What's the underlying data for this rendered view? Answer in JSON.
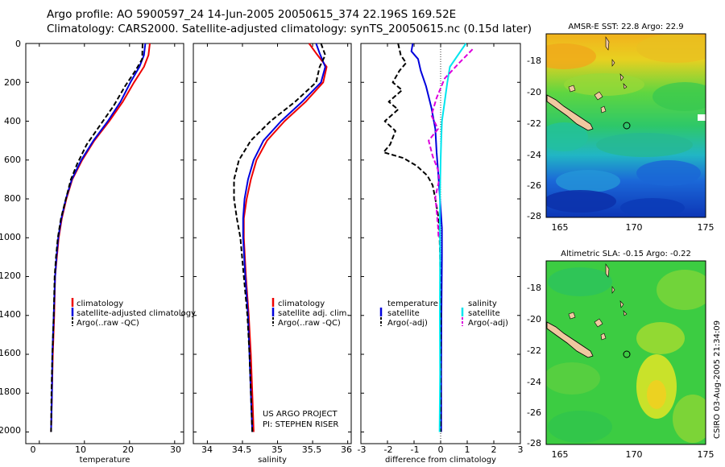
{
  "header": {
    "line1": "Argo profile: AO 5900597_24 14-Jun-2005 20050615_374 22.196S 169.52E",
    "line2": "Climatology: CARS2000. Satellite-adjusted climatology: synTS_20050615.nc (0.15d later)"
  },
  "colors": {
    "red": "#ee0000",
    "blue": "#0000dd",
    "black": "#000000",
    "cyan": "#00e5ee",
    "magenta": "#dd00dd"
  },
  "chart_data": [
    {
      "type": "line",
      "xlabel": "temperature",
      "x_ticks": [
        "0",
        "10",
        "20",
        "30"
      ],
      "xlim": [
        -3,
        32
      ],
      "y_ticks": [
        "0",
        "200",
        "400",
        "600",
        "800",
        "1000",
        "1200",
        "1400",
        "1600",
        "1800",
        "2000"
      ],
      "ylim": [
        0,
        2060
      ],
      "y_reversed": true,
      "legend": [
        "climatology",
        "satellite-adjusted climatology",
        "Argo(..raw -QC)"
      ],
      "series": [
        {
          "name": "climatology",
          "color": "red",
          "dash": false,
          "points": [
            [
              24.5,
              0
            ],
            [
              24.2,
              60
            ],
            [
              23.2,
              120
            ],
            [
              21.0,
              200
            ],
            [
              18.5,
              300
            ],
            [
              15.5,
              400
            ],
            [
              12.2,
              500
            ],
            [
              9.5,
              600
            ],
            [
              7.3,
              700
            ],
            [
              6.0,
              800
            ],
            [
              5.0,
              900
            ],
            [
              4.3,
              1000
            ],
            [
              3.9,
              1100
            ],
            [
              3.5,
              1200
            ],
            [
              3.3,
              1400
            ],
            [
              3.0,
              1600
            ],
            [
              2.8,
              1800
            ],
            [
              2.6,
              2000
            ]
          ]
        },
        {
          "name": "satellite-adjusted climatology",
          "color": "blue",
          "dash": false,
          "points": [
            [
              23.5,
              0
            ],
            [
              23.2,
              60
            ],
            [
              22.2,
              120
            ],
            [
              20.2,
              200
            ],
            [
              18.0,
              300
            ],
            [
              15.2,
              400
            ],
            [
              12.0,
              500
            ],
            [
              9.3,
              600
            ],
            [
              7.2,
              700
            ],
            [
              5.9,
              800
            ],
            [
              4.9,
              900
            ],
            [
              4.2,
              1000
            ],
            [
              3.8,
              1100
            ],
            [
              3.5,
              1200
            ],
            [
              3.2,
              1400
            ],
            [
              2.9,
              1600
            ],
            [
              2.8,
              1800
            ],
            [
              2.6,
              2000
            ]
          ]
        },
        {
          "name": "Argo(..raw -QC)",
          "color": "black",
          "dash": true,
          "points": [
            [
              22.9,
              0
            ],
            [
              22.8,
              80
            ],
            [
              21.3,
              140
            ],
            [
              19.0,
              220
            ],
            [
              16.5,
              320
            ],
            [
              13.5,
              420
            ],
            [
              10.5,
              520
            ],
            [
              8.4,
              620
            ],
            [
              7.0,
              700
            ],
            [
              5.9,
              800
            ],
            [
              4.8,
              900
            ],
            [
              4.1,
              1000
            ],
            [
              3.7,
              1100
            ],
            [
              3.4,
              1200
            ],
            [
              3.2,
              1400
            ],
            [
              2.9,
              1600
            ],
            [
              2.7,
              1800
            ],
            [
              2.6,
              2000
            ]
          ]
        }
      ]
    },
    {
      "type": "line",
      "xlabel": "salinity",
      "x_ticks": [
        "34",
        "34.5",
        "35",
        "35.5",
        "36"
      ],
      "xlim": [
        33.8,
        36.05
      ],
      "y_ticks": [],
      "ylim": [
        0,
        2060
      ],
      "y_reversed": true,
      "legend": [
        "climatology",
        "satellite adj. clim.",
        "Argo(..raw -QC)"
      ],
      "annotation": [
        "US ARGO PROJECT",
        "PI: STEPHEN RISER"
      ],
      "series": [
        {
          "name": "climatology",
          "color": "red",
          "dash": false,
          "points": [
            [
              35.45,
              0
            ],
            [
              35.55,
              50
            ],
            [
              35.7,
              120
            ],
            [
              35.65,
              200
            ],
            [
              35.4,
              300
            ],
            [
              35.1,
              400
            ],
            [
              34.85,
              500
            ],
            [
              34.7,
              600
            ],
            [
              34.62,
              700
            ],
            [
              34.56,
              800
            ],
            [
              34.52,
              900
            ],
            [
              34.52,
              1000
            ],
            [
              34.55,
              1200
            ],
            [
              34.59,
              1400
            ],
            [
              34.62,
              1600
            ],
            [
              34.64,
              1800
            ],
            [
              34.66,
              2000
            ]
          ]
        },
        {
          "name": "satellite adj. clim.",
          "color": "blue",
          "dash": false,
          "points": [
            [
              35.55,
              0
            ],
            [
              35.6,
              50
            ],
            [
              35.68,
              120
            ],
            [
              35.62,
              200
            ],
            [
              35.35,
              300
            ],
            [
              35.05,
              400
            ],
            [
              34.8,
              500
            ],
            [
              34.66,
              600
            ],
            [
              34.58,
              700
            ],
            [
              34.53,
              800
            ],
            [
              34.51,
              900
            ],
            [
              34.51,
              1000
            ],
            [
              34.54,
              1200
            ],
            [
              34.58,
              1400
            ],
            [
              34.6,
              1600
            ],
            [
              34.62,
              1800
            ],
            [
              34.64,
              2000
            ]
          ]
        },
        {
          "name": "Argo(..raw -QC)",
          "color": "black",
          "dash": true,
          "points": [
            [
              35.62,
              0
            ],
            [
              35.68,
              60
            ],
            [
              35.6,
              120
            ],
            [
              35.55,
              200
            ],
            [
              35.25,
              300
            ],
            [
              34.9,
              400
            ],
            [
              34.62,
              500
            ],
            [
              34.45,
              600
            ],
            [
              34.38,
              700
            ],
            [
              34.38,
              800
            ],
            [
              34.42,
              900
            ],
            [
              34.47,
              1000
            ],
            [
              34.52,
              1200
            ],
            [
              34.57,
              1400
            ],
            [
              34.6,
              1600
            ],
            [
              34.62,
              1800
            ],
            [
              34.64,
              2000
            ]
          ]
        }
      ]
    },
    {
      "type": "line",
      "xlabel": "difference from climatology",
      "x_ticks": [
        "-3",
        "-2",
        "-1",
        "0",
        "1",
        "2",
        "3"
      ],
      "xlim": [
        -3,
        3
      ],
      "y_ticks": [],
      "ylim": [
        0,
        2060
      ],
      "y_reversed": true,
      "legend_left": [
        "temperature",
        "satellite",
        "Argo(-adj)"
      ],
      "legend_right": [
        "salinity",
        "satellite",
        "Argo(-adj)"
      ],
      "series": [
        {
          "name": "temperature satellite",
          "color": "blue",
          "dash": false,
          "points": [
            [
              -1.05,
              0
            ],
            [
              -1.1,
              40
            ],
            [
              -0.85,
              80
            ],
            [
              -0.75,
              140
            ],
            [
              -0.55,
              220
            ],
            [
              -0.35,
              330
            ],
            [
              -0.2,
              440
            ],
            [
              -0.15,
              560
            ],
            [
              -0.1,
              650
            ],
            [
              -0.05,
              750
            ],
            [
              0.0,
              850
            ],
            [
              0.05,
              950
            ],
            [
              0.05,
              1100
            ],
            [
              0.03,
              1400
            ],
            [
              0.02,
              1700
            ],
            [
              0.02,
              2000
            ]
          ]
        },
        {
          "name": "temperature Argo(-adj)",
          "color": "black",
          "dash": true,
          "points": [
            [
              -1.6,
              0
            ],
            [
              -1.5,
              60
            ],
            [
              -1.3,
              100
            ],
            [
              -1.55,
              140
            ],
            [
              -1.8,
              200
            ],
            [
              -1.45,
              240
            ],
            [
              -1.95,
              300
            ],
            [
              -1.6,
              340
            ],
            [
              -2.1,
              400
            ],
            [
              -1.7,
              450
            ],
            [
              -1.9,
              520
            ],
            [
              -2.15,
              560
            ],
            [
              -1.4,
              590
            ],
            [
              -0.9,
              630
            ],
            [
              -0.5,
              680
            ],
            [
              -0.3,
              730
            ],
            [
              -0.2,
              800
            ],
            [
              -0.1,
              880
            ],
            [
              -0.05,
              950
            ],
            [
              -0.02,
              1100
            ],
            [
              0.0,
              1400
            ],
            [
              0.0,
              2000
            ]
          ]
        },
        {
          "name": "salinity satellite",
          "color": "cyan",
          "dash": false,
          "points": [
            [
              0.95,
              0
            ],
            [
              0.7,
              50
            ],
            [
              0.35,
              120
            ],
            [
              0.25,
              200
            ],
            [
              0.15,
              300
            ],
            [
              0.05,
              400
            ],
            [
              0.02,
              500
            ],
            [
              0.0,
              600
            ],
            [
              -0.02,
              750
            ],
            [
              -0.03,
              900
            ],
            [
              -0.02,
              1100
            ],
            [
              -0.03,
              1400
            ],
            [
              -0.02,
              1700
            ],
            [
              -0.04,
              2000
            ]
          ]
        },
        {
          "name": "salinity Argo(-adj)",
          "color": "magenta",
          "dash": true,
          "points": [
            [
              1.2,
              30
            ],
            [
              0.7,
              100
            ],
            [
              0.15,
              180
            ],
            [
              -0.15,
              280
            ],
            [
              -0.35,
              370
            ],
            [
              -0.1,
              440
            ],
            [
              -0.45,
              500
            ],
            [
              -0.3,
              580
            ],
            [
              -0.1,
              650
            ],
            [
              -0.05,
              700
            ],
            [
              -0.2,
              790
            ],
            [
              -0.15,
              860
            ],
            [
              -0.1,
              940
            ],
            [
              -0.08,
              1000
            ]
          ]
        }
      ]
    }
  ],
  "maps": [
    {
      "title": "AMSR-E SST: 22.8 Argo: 22.9",
      "x_ticks": [
        "165",
        "170",
        "175"
      ],
      "y_ticks": [
        "-18",
        "-20",
        "-22",
        "-24",
        "-26",
        "-28"
      ]
    },
    {
      "title": "Altimetric SLA: -0.15 Argo: -0.22",
      "x_ticks": [
        "165",
        "170",
        "175"
      ],
      "y_ticks": [
        "-18",
        "-20",
        "-22",
        "-24",
        "-26",
        "-28"
      ]
    }
  ],
  "credit": "CSIRO 03-Aug-2005 21:34:09"
}
